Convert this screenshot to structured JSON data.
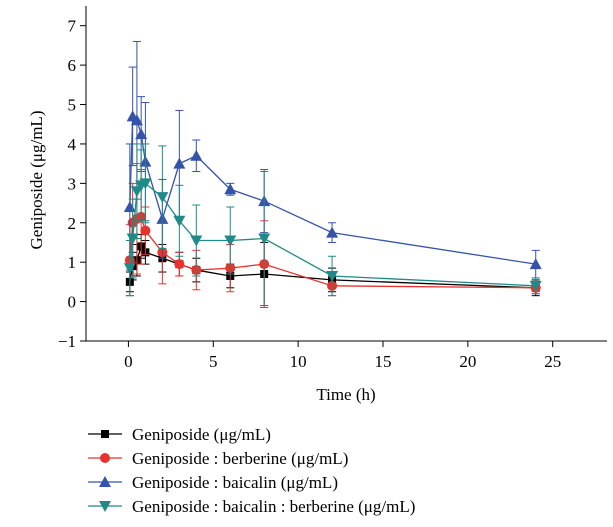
{
  "chart_data": {
    "type": "line",
    "title": "",
    "xlabel": "Time (h)",
    "ylabel": "Geniposide (μg/mL)",
    "xlim": [
      -2.5,
      28.2
    ],
    "ylim": [
      -1,
      7.5
    ],
    "xticks": [
      0,
      5,
      10,
      15,
      20,
      25
    ],
    "yticks": [
      -1,
      0,
      1,
      2,
      3,
      4,
      5,
      6,
      7
    ],
    "grid": false,
    "legend_position": "bottom",
    "series": [
      {
        "name": "Geniposide (μg/mL)",
        "color": "#000000",
        "marker": "square",
        "x": [
          0.083,
          0.25,
          0.5,
          0.75,
          1,
          2,
          3,
          4,
          6,
          8,
          12,
          24
        ],
        "y": [
          0.5,
          0.9,
          1.05,
          1.4,
          1.25,
          1.1,
          0.95,
          0.8,
          0.65,
          0.7,
          0.55,
          0.35
        ],
        "err": [
          0.25,
          0.35,
          0.4,
          0.3,
          0.3,
          0.35,
          0.3,
          0.3,
          0.3,
          0.8,
          0.3,
          0.2
        ]
      },
      {
        "name": "Geniposide : berberine (μg/mL)",
        "color": "#e8332d",
        "marker": "circle",
        "x": [
          0.083,
          0.25,
          0.5,
          0.75,
          1,
          2,
          3,
          4,
          6,
          8,
          12,
          24
        ],
        "y": [
          1.05,
          2.0,
          2.1,
          2.15,
          1.8,
          1.25,
          0.95,
          0.8,
          0.85,
          0.95,
          0.4,
          0.35
        ],
        "err": [
          0.9,
          1.0,
          1.4,
          1.2,
          0.6,
          0.8,
          0.3,
          0.5,
          0.6,
          1.1,
          0.25,
          0.15
        ]
      },
      {
        "name": "Geniposide : baicalin (μg/mL)",
        "color": "#3553a8",
        "marker": "triangle-up",
        "x": [
          0.083,
          0.25,
          0.5,
          0.75,
          1,
          2,
          3,
          4,
          6,
          8,
          12,
          24
        ],
        "y": [
          2.4,
          4.7,
          4.6,
          4.25,
          3.55,
          2.1,
          3.5,
          3.7,
          2.85,
          2.55,
          1.75,
          0.95
        ],
        "err": [
          1.6,
          1.25,
          2.0,
          0.95,
          1.5,
          1.0,
          1.35,
          0.4,
          0.15,
          0.8,
          0.25,
          0.35
        ]
      },
      {
        "name": "Geniposide : baicalin : berberine (μg/mL)",
        "color": "#1f8a87",
        "marker": "triangle-down",
        "x": [
          0.083,
          0.25,
          0.5,
          0.75,
          1,
          2,
          3,
          4,
          6,
          8,
          12,
          24
        ],
        "y": [
          0.85,
          1.6,
          2.8,
          2.95,
          3.0,
          2.65,
          2.05,
          1.55,
          1.55,
          1.6,
          0.65,
          0.4
        ],
        "err": [
          0.7,
          1.0,
          1.2,
          0.9,
          1.0,
          1.3,
          0.9,
          0.9,
          0.85,
          1.7,
          0.5,
          0.2
        ]
      }
    ]
  }
}
